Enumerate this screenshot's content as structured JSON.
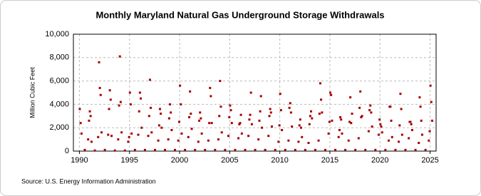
{
  "chart_data": {
    "type": "scatter",
    "title": "Monthly Maryland Natural  Gas Underground Storage Withdrawals",
    "y_label": "Million Cubic Feet",
    "source": "Source: U.S. Energy Information Administration",
    "color": "#a50000",
    "grid": true,
    "xlim": [
      1989.4,
      2025.6
    ],
    "ylim": [
      0,
      10000
    ],
    "xticks": [
      1990,
      1995,
      2000,
      2005,
      2010,
      2015,
      2020,
      2025
    ],
    "yticks": [
      {
        "value": 0,
        "label": "0"
      },
      {
        "value": 2000,
        "label": "2,000"
      },
      {
        "value": 4000,
        "label": "4,000"
      },
      {
        "value": 6000,
        "label": "6,000"
      },
      {
        "value": 8000,
        "label": "8,000"
      },
      {
        "value": 10000,
        "label": "10,000"
      }
    ],
    "x": [
      1990.04,
      1990.12,
      1990.21,
      1990.54,
      1990.87,
      1990.96,
      1991.04,
      1991.12,
      1991.21,
      1991.54,
      1991.87,
      1991.96,
      1992.04,
      1992.12,
      1992.21,
      1992.54,
      1992.87,
      1992.96,
      1993.04,
      1993.12,
      1993.21,
      1993.54,
      1993.87,
      1993.96,
      1994.04,
      1994.12,
      1994.21,
      1994.54,
      1994.87,
      1994.96,
      1995.04,
      1995.12,
      1995.21,
      1995.54,
      1995.87,
      1995.96,
      1996.04,
      1996.12,
      1996.21,
      1996.54,
      1996.87,
      1996.96,
      1997.04,
      1997.12,
      1997.21,
      1997.54,
      1997.87,
      1997.96,
      1998.04,
      1998.12,
      1998.21,
      1998.54,
      1998.87,
      1998.96,
      1999.04,
      1999.12,
      1999.21,
      1999.54,
      1999.87,
      1999.96,
      2000.04,
      2000.12,
      2000.21,
      2000.54,
      2000.87,
      2000.96,
      2001.04,
      2001.12,
      2001.21,
      2001.54,
      2001.87,
      2001.96,
      2002.04,
      2002.12,
      2002.21,
      2002.54,
      2002.87,
      2002.96,
      2003.04,
      2003.12,
      2003.21,
      2003.54,
      2003.87,
      2003.96,
      2004.04,
      2004.12,
      2004.21,
      2004.54,
      2004.87,
      2004.96,
      2005.04,
      2005.12,
      2005.21,
      2005.54,
      2005.87,
      2005.96,
      2006.04,
      2006.12,
      2006.21,
      2006.54,
      2006.87,
      2006.96,
      2007.04,
      2007.12,
      2007.21,
      2007.54,
      2007.87,
      2007.96,
      2008.04,
      2008.12,
      2008.21,
      2008.54,
      2008.87,
      2008.96,
      2009.04,
      2009.12,
      2009.21,
      2009.54,
      2009.87,
      2009.96,
      2010.04,
      2010.12,
      2010.21,
      2010.54,
      2010.87,
      2010.96,
      2011.04,
      2011.12,
      2011.21,
      2011.54,
      2011.87,
      2011.96,
      2012.04,
      2012.12,
      2012.21,
      2012.54,
      2012.87,
      2012.96,
      2013.04,
      2013.12,
      2013.21,
      2013.54,
      2013.87,
      2013.96,
      2014.04,
      2014.12,
      2014.21,
      2014.54,
      2014.87,
      2014.96,
      2015.04,
      2015.12,
      2015.21,
      2015.54,
      2015.87,
      2015.96,
      2016.04,
      2016.12,
      2016.21,
      2016.54,
      2016.87,
      2016.96,
      2017.04,
      2017.12,
      2017.21,
      2017.54,
      2017.87,
      2017.96,
      2018.04,
      2018.12,
      2018.21,
      2018.54,
      2018.87,
      2018.96,
      2019.04,
      2019.12,
      2019.21,
      2019.54,
      2019.87,
      2019.96,
      2020.04,
      2020.12,
      2020.21,
      2020.54,
      2020.87,
      2020.96,
      2021.04,
      2021.12,
      2021.21,
      2021.54,
      2021.87,
      2021.96,
      2022.04,
      2022.12,
      2022.21,
      2022.54,
      2022.87,
      2022.96,
      2023.04,
      2023.12,
      2023.21,
      2023.54,
      2023.87,
      2023.96,
      2024.04,
      2024.12,
      2024.21,
      2024.54,
      2024.87,
      2024.96,
      2025.04,
      2025.12,
      2025.21
    ],
    "values": [
      3600,
      2400,
      1500,
      100,
      1000,
      2600,
      3400,
      3000,
      800,
      50,
      1200,
      7600,
      5400,
      4800,
      1600,
      100,
      1400,
      3600,
      5200,
      4400,
      1300,
      50,
      1000,
      3900,
      8100,
      4200,
      1600,
      50,
      800,
      1200,
      5000,
      4000,
      1500,
      100,
      1400,
      3400,
      5000,
      4500,
      2000,
      100,
      1300,
      3000,
      6100,
      3700,
      1600,
      100,
      900,
      2200,
      3600,
      3200,
      2000,
      100,
      1000,
      2800,
      4000,
      3300,
      1800,
      100,
      900,
      2500,
      5600,
      4000,
      1500,
      100,
      1200,
      2900,
      5100,
      3200,
      1900,
      100,
      800,
      2600,
      3300,
      2800,
      1500,
      100,
      900,
      2400,
      5400,
      4700,
      2400,
      100,
      1000,
      3000,
      6000,
      3800,
      1600,
      100,
      1300,
      2900,
      3900,
      3500,
      2400,
      100,
      1100,
      2300,
      2400,
      3100,
      1500,
      100,
      1300,
      2700,
      3100,
      5000,
      2300,
      100,
      1000,
      2600,
      3400,
      4700,
      2000,
      100,
      1300,
      3000,
      3600,
      3300,
      2100,
      100,
      800,
      2200,
      4900,
      3500,
      1800,
      100,
      900,
      3700,
      4100,
      3300,
      2100,
      100,
      800,
      2200,
      2700,
      2000,
      1200,
      100,
      700,
      2300,
      3000,
      3400,
      2800,
      100,
      900,
      3200,
      5800,
      4400,
      3300,
      100,
      1500,
      2500,
      5000,
      4800,
      2600,
      100,
      1200,
      1800,
      2900,
      2700,
      1500,
      100,
      900,
      2500,
      4600,
      2400,
      3200,
      100,
      1100,
      3700,
      5100,
      2900,
      3000,
      100,
      1700,
      3500,
      3900,
      3300,
      2100,
      100,
      1400,
      2700,
      2300,
      2100,
      1600,
      100,
      900,
      3800,
      3800,
      2600,
      1200,
      100,
      800,
      2200,
      4900,
      3600,
      1400,
      100,
      1100,
      2500,
      2500,
      2300,
      1800,
      100,
      700,
      4600,
      3800,
      2600,
      1400,
      100,
      900,
      1700,
      5600,
      4200,
      2600
    ]
  }
}
